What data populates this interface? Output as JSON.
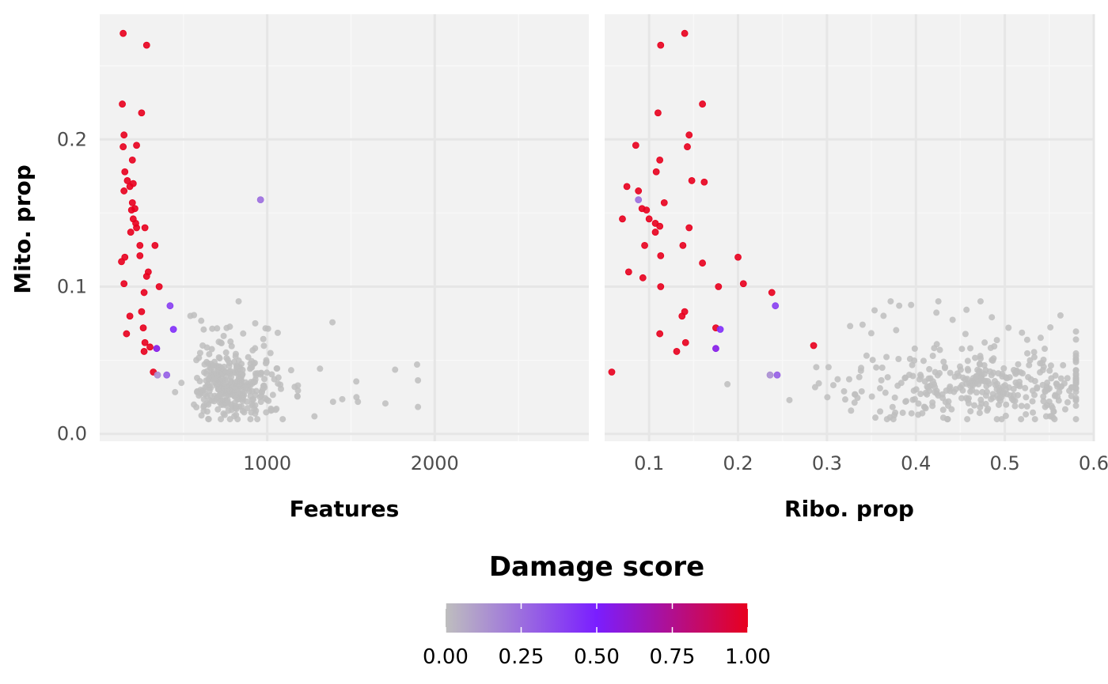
{
  "chart_data": {
    "type": "scatter",
    "y_axis": {
      "label": "Mito. prop",
      "ticks": [
        "0.0",
        "0.1",
        "0.2"
      ],
      "tick_values": [
        0.0,
        0.1,
        0.2
      ],
      "range": [
        -0.005,
        0.285
      ]
    },
    "panels": [
      {
        "xlabel": "Features",
        "xlim": [
          0,
          2920
        ],
        "x_ticks": [
          "1000",
          "2000"
        ],
        "x_tick_values": [
          1000,
          2000
        ],
        "minor_gridlines": [
          500,
          1500,
          2500
        ],
        "background_points": {
          "count": 380,
          "color": "#bebebe",
          "x_range": [
            450,
            1900
          ],
          "x_center": 720,
          "y_range": [
            0.01,
            0.09
          ],
          "y_center": 0.032
        },
        "points": [
          [
            140,
            0.272,
            1
          ],
          [
            280,
            0.264,
            1
          ],
          [
            135,
            0.224,
            1
          ],
          [
            250,
            0.218,
            1
          ],
          [
            145,
            0.203,
            1
          ],
          [
            220,
            0.196,
            1
          ],
          [
            140,
            0.195,
            1
          ],
          [
            195,
            0.186,
            1
          ],
          [
            150,
            0.178,
            1
          ],
          [
            165,
            0.172,
            1
          ],
          [
            200,
            0.17,
            1
          ],
          [
            180,
            0.168,
            1
          ],
          [
            145,
            0.165,
            1
          ],
          [
            195,
            0.157,
            1
          ],
          [
            210,
            0.153,
            1
          ],
          [
            190,
            0.152,
            1
          ],
          [
            200,
            0.146,
            1
          ],
          [
            215,
            0.143,
            1
          ],
          [
            220,
            0.14,
            1
          ],
          [
            270,
            0.14,
            1
          ],
          [
            185,
            0.137,
            1
          ],
          [
            330,
            0.128,
            1
          ],
          [
            240,
            0.128,
            1
          ],
          [
            240,
            0.121,
            1
          ],
          [
            150,
            0.12,
            1
          ],
          [
            130,
            0.117,
            1
          ],
          [
            290,
            0.11,
            1
          ],
          [
            280,
            0.107,
            1
          ],
          [
            145,
            0.102,
            1
          ],
          [
            355,
            0.1,
            1
          ],
          [
            265,
            0.096,
            1
          ],
          [
            250,
            0.083,
            1
          ],
          [
            180,
            0.08,
            1
          ],
          [
            260,
            0.072,
            1
          ],
          [
            160,
            0.068,
            1
          ],
          [
            270,
            0.062,
            1
          ],
          [
            300,
            0.059,
            1
          ],
          [
            265,
            0.056,
            1
          ],
          [
            320,
            0.042,
            1
          ],
          [
            960,
            0.159,
            0.25
          ],
          [
            420,
            0.087,
            0.4
          ],
          [
            440,
            0.071,
            0.45
          ],
          [
            340,
            0.058,
            0.55
          ],
          [
            400,
            0.04,
            0.3
          ],
          [
            345,
            0.04,
            0.15
          ]
        ]
      },
      {
        "xlabel": "Ribo. prop",
        "xlim": [
          0.05,
          0.6
        ],
        "x_ticks": [
          "0.1",
          "0.2",
          "0.3",
          "0.4",
          "0.5",
          "0.6"
        ],
        "x_tick_values": [
          0.1,
          0.2,
          0.3,
          0.4,
          0.5,
          0.6
        ],
        "minor_gridlines": [
          0.15,
          0.25,
          0.35,
          0.45,
          0.55
        ],
        "background_points": {
          "count": 380,
          "color": "#bebebe",
          "x_range": [
            0.17,
            0.58
          ],
          "x_center": 0.47,
          "y_range": [
            0.01,
            0.09
          ],
          "y_center": 0.032
        },
        "points": [
          [
            0.14,
            0.272,
            1
          ],
          [
            0.113,
            0.264,
            1
          ],
          [
            0.16,
            0.224,
            1
          ],
          [
            0.11,
            0.218,
            1
          ],
          [
            0.145,
            0.203,
            1
          ],
          [
            0.085,
            0.196,
            1
          ],
          [
            0.143,
            0.195,
            1
          ],
          [
            0.112,
            0.186,
            1
          ],
          [
            0.108,
            0.178,
            1
          ],
          [
            0.148,
            0.172,
            1
          ],
          [
            0.162,
            0.171,
            1
          ],
          [
            0.075,
            0.168,
            1
          ],
          [
            0.088,
            0.165,
            1
          ],
          [
            0.117,
            0.157,
            1
          ],
          [
            0.092,
            0.153,
            1
          ],
          [
            0.097,
            0.152,
            1
          ],
          [
            0.07,
            0.146,
            1
          ],
          [
            0.1,
            0.146,
            1
          ],
          [
            0.107,
            0.143,
            1
          ],
          [
            0.112,
            0.141,
            1
          ],
          [
            0.145,
            0.14,
            1
          ],
          [
            0.107,
            0.137,
            1
          ],
          [
            0.138,
            0.128,
            1
          ],
          [
            0.095,
            0.128,
            1
          ],
          [
            0.113,
            0.121,
            1
          ],
          [
            0.2,
            0.12,
            1
          ],
          [
            0.16,
            0.116,
            1
          ],
          [
            0.077,
            0.11,
            1
          ],
          [
            0.093,
            0.106,
            1
          ],
          [
            0.206,
            0.102,
            1
          ],
          [
            0.113,
            0.1,
            1
          ],
          [
            0.178,
            0.1,
            1
          ],
          [
            0.238,
            0.096,
            1
          ],
          [
            0.14,
            0.083,
            1
          ],
          [
            0.137,
            0.08,
            1
          ],
          [
            0.175,
            0.072,
            1
          ],
          [
            0.112,
            0.068,
            1
          ],
          [
            0.141,
            0.062,
            1
          ],
          [
            0.285,
            0.06,
            1
          ],
          [
            0.131,
            0.056,
            1
          ],
          [
            0.058,
            0.042,
            1
          ],
          [
            0.088,
            0.159,
            0.25
          ],
          [
            0.242,
            0.087,
            0.4
          ],
          [
            0.18,
            0.071,
            0.45
          ],
          [
            0.175,
            0.058,
            0.55
          ],
          [
            0.244,
            0.04,
            0.3
          ],
          [
            0.236,
            0.04,
            0.15
          ]
        ]
      }
    ],
    "color_scale": {
      "title": "Damage score",
      "ticks": [
        "0.00",
        "0.25",
        "0.50",
        "0.75",
        "1.00"
      ],
      "tick_values": [
        0,
        0.25,
        0.5,
        0.75,
        1
      ],
      "stops": [
        {
          "offset": 0,
          "color": "#bebebe"
        },
        {
          "offset": 0.5,
          "color": "#7a1eff"
        },
        {
          "offset": 1,
          "color": "#e8001e"
        }
      ]
    },
    "panel_background": "#f2f2f2",
    "grid": true,
    "legend_position": "bottom"
  }
}
